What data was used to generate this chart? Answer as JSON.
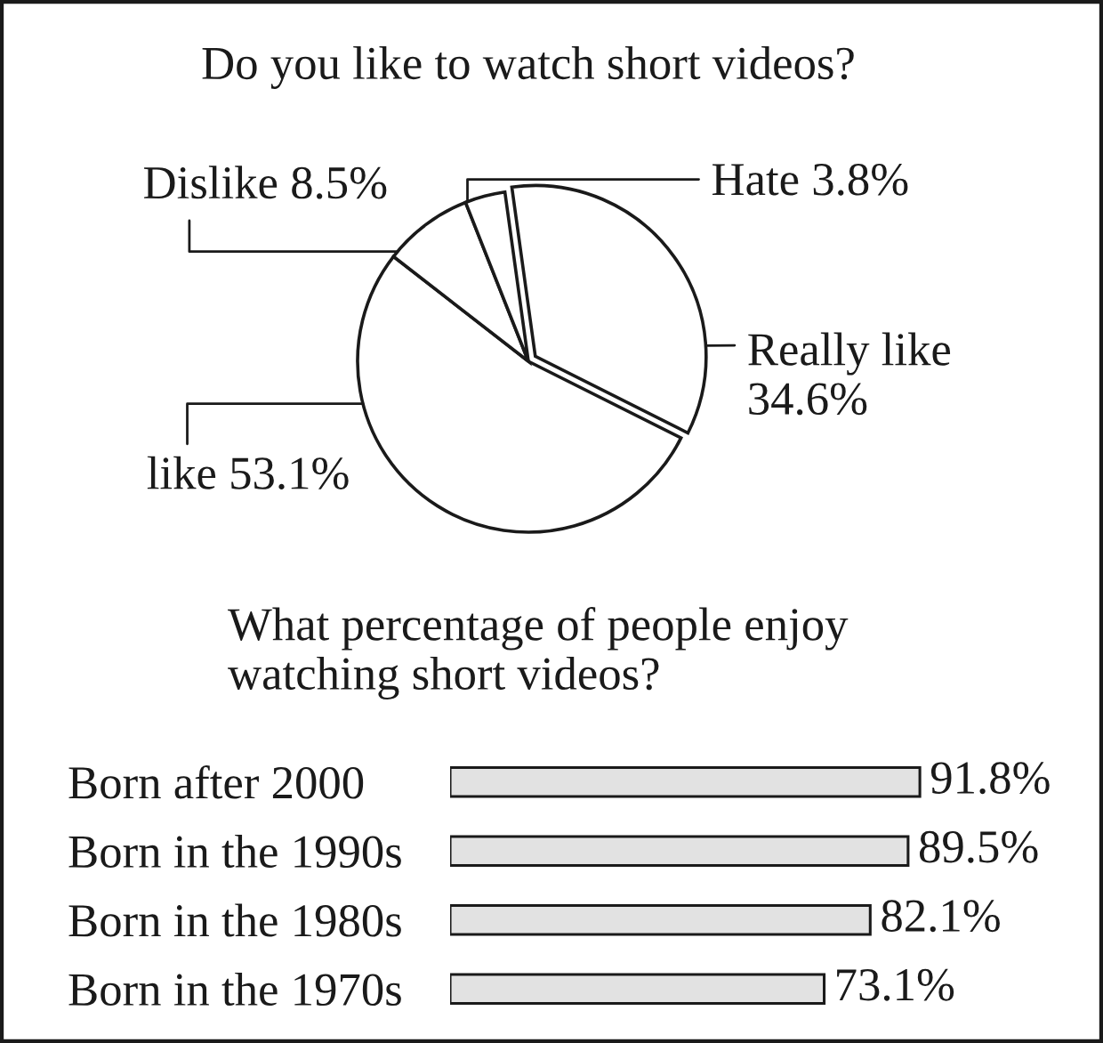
{
  "chart_data": [
    {
      "type": "pie",
      "title": "Do you like to watch short videos?",
      "categories": [
        "Really like",
        "like",
        "Dislike",
        "Hate"
      ],
      "values": [
        34.6,
        53.1,
        8.5,
        3.8
      ],
      "value_labels": [
        "34.6%",
        "53.1%",
        "8.5%",
        "3.8%"
      ],
      "colors": [
        "#ffffff",
        "#ffffff",
        "#ffffff",
        "#ffffff"
      ]
    },
    {
      "type": "bar",
      "orientation": "horizontal",
      "title": "What percentage of people enjoy\nwatching short videos?",
      "categories": [
        "Born after 2000",
        "Born in the 1990s",
        "Born in the 1980s",
        "Born in the 1970s"
      ],
      "values": [
        91.8,
        89.5,
        82.1,
        73.1
      ],
      "value_labels": [
        "91.8%",
        "89.5%",
        "82.1%",
        "73.1%"
      ],
      "color": "#e2e2e2"
    }
  ]
}
